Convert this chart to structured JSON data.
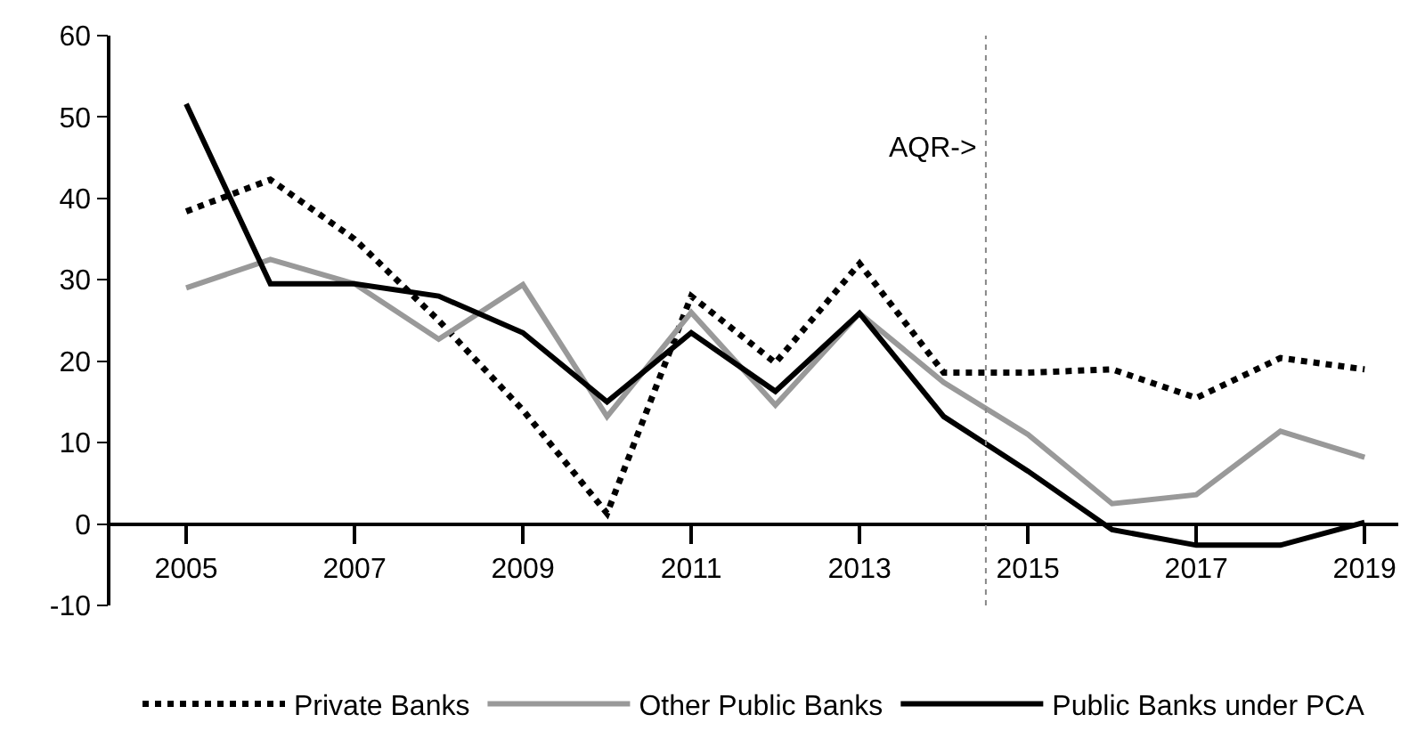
{
  "chart_data": {
    "type": "line",
    "x": [
      2005,
      2006,
      2007,
      2008,
      2009,
      2010,
      2011,
      2012,
      2013,
      2014,
      2015,
      2016,
      2017,
      2018,
      2019
    ],
    "series": [
      {
        "name": "Private Banks",
        "color": "#000000",
        "line_style": "dotted",
        "values": [
          38.4,
          42.3,
          35,
          25,
          14,
          1.3,
          28,
          19.8,
          32,
          18.6,
          18.6,
          19,
          15.5,
          20.4,
          19
        ]
      },
      {
        "name": "Other Public Banks",
        "color": "#999999",
        "line_style": "solid",
        "values": [
          29,
          32.5,
          29.5,
          22.7,
          29.4,
          13.2,
          26,
          14.6,
          25.9,
          17.4,
          11,
          2.5,
          3.6,
          11.4,
          8.2
        ]
      },
      {
        "name": "Public Banks under PCA",
        "color": "#000000",
        "line_style": "solid",
        "values": [
          51.6,
          29.5,
          29.5,
          28,
          23.5,
          15,
          23.5,
          16.3,
          25.9,
          13.2,
          6.5,
          -0.7,
          -2.6,
          -2.6,
          0.2
        ]
      }
    ],
    "xlim": [
      2004.1,
      2019.4
    ],
    "xticks": [
      2005,
      2007,
      2009,
      2011,
      2013,
      2015,
      2017,
      2019
    ],
    "ylim": [
      -10,
      60
    ],
    "yticks": [
      -10,
      0,
      10,
      20,
      30,
      40,
      50,
      60
    ],
    "ref_lines": [
      {
        "axis": "x",
        "value": 2014.5,
        "label": "AQR->",
        "color": "#888888",
        "line_style": "dotted"
      }
    ],
    "grid": false,
    "legend": "bottom",
    "marker": "none"
  }
}
